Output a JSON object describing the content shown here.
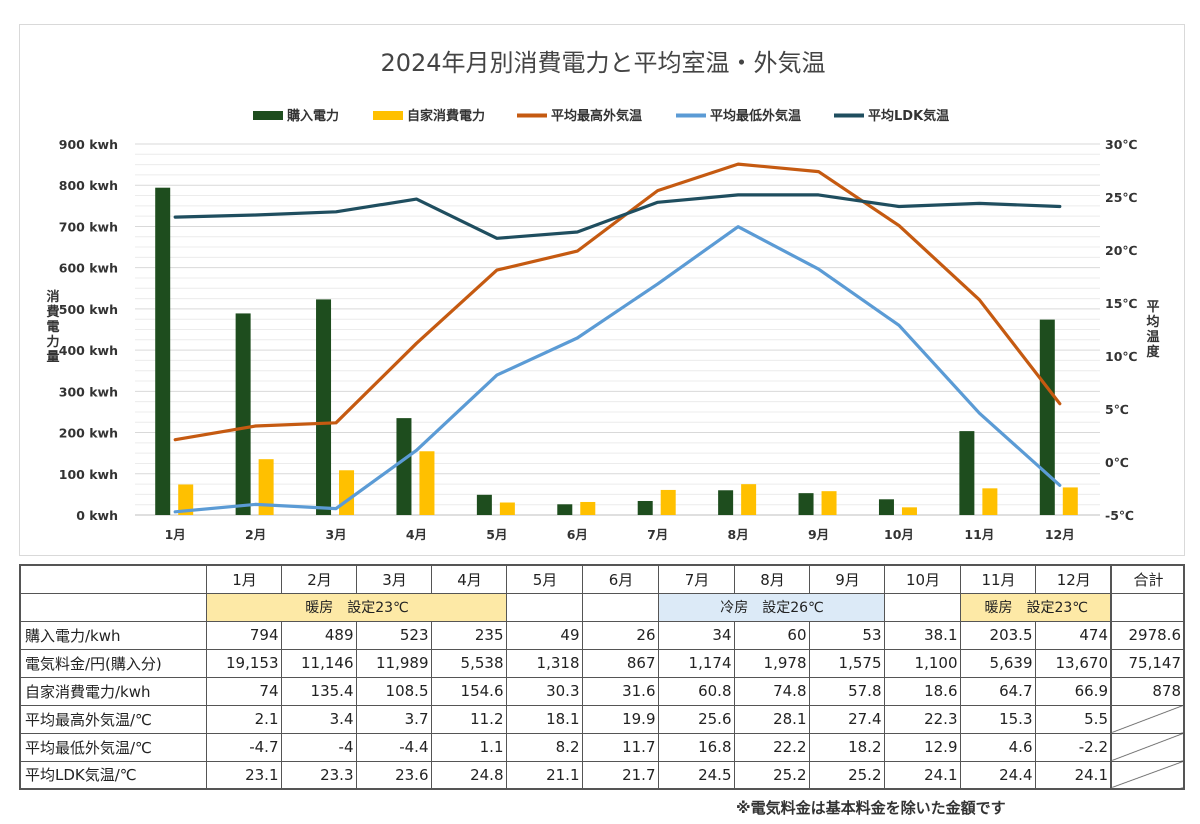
{
  "chart_data": {
    "type": "bar+line",
    "title": "2024年月別消費電力と平均室温・外気温",
    "categories": [
      "1月",
      "2月",
      "3月",
      "4月",
      "5月",
      "6月",
      "7月",
      "8月",
      "9月",
      "10月",
      "11月",
      "12月"
    ],
    "series": [
      {
        "name": "購入電力",
        "type": "bar",
        "axis": "left",
        "color": "#1e4d1e",
        "values": [
          794,
          489,
          523,
          235,
          49,
          26,
          34,
          60,
          53,
          38.1,
          203.5,
          474
        ]
      },
      {
        "name": "自家消費電力",
        "type": "bar",
        "axis": "left",
        "color": "#ffc000",
        "values": [
          74,
          135.4,
          108.5,
          154.6,
          30.3,
          31.6,
          60.8,
          74.8,
          57.8,
          18.6,
          64.7,
          66.9
        ]
      },
      {
        "name": "平均最高外気温",
        "type": "line",
        "axis": "right",
        "color": "#c55a11",
        "values": [
          2.1,
          3.4,
          3.7,
          11.2,
          18.1,
          19.9,
          25.6,
          28.1,
          27.4,
          22.3,
          15.3,
          5.5
        ]
      },
      {
        "name": "平均最低外気温",
        "type": "line",
        "axis": "right",
        "color": "#5b9bd5",
        "values": [
          -4.7,
          -4,
          -4.4,
          1.1,
          8.2,
          11.7,
          16.8,
          22.2,
          18.2,
          12.9,
          4.6,
          -2.2
        ]
      },
      {
        "name": "平均LDK気温",
        "type": "line",
        "axis": "right",
        "color": "#1f4e5f",
        "values": [
          23.1,
          23.3,
          23.6,
          24.8,
          21.1,
          21.7,
          24.5,
          25.2,
          25.2,
          24.1,
          24.4,
          24.1
        ]
      }
    ],
    "ylabel": "消費電力量",
    "y2label": "平均温度",
    "ylim": [
      0,
      900
    ],
    "y2lim": [
      -5,
      30
    ],
    "yticks": [
      "0 kwh",
      "100 kwh",
      "200 kwh",
      "300 kwh",
      "400 kwh",
      "500 kwh",
      "600 kwh",
      "700 kwh",
      "800 kwh",
      "900 kwh"
    ],
    "y2ticks": [
      "-5℃",
      "0℃",
      "5℃",
      "10℃",
      "15℃",
      "20℃",
      "25℃",
      "30℃"
    ],
    "legend": "top"
  },
  "table": {
    "corner": "",
    "months": [
      "1月",
      "2月",
      "3月",
      "4月",
      "5月",
      "6月",
      "7月",
      "8月",
      "9月",
      "10月",
      "11月",
      "12月"
    ],
    "total_header": "合計",
    "bands": {
      "heating1": "暖房　設定23℃",
      "cooling": "冷房　設定26℃",
      "heating2": "暖房　設定23℃"
    },
    "rows": [
      {
        "label": "購入電力/kwh",
        "values": [
          "794",
          "489",
          "523",
          "235",
          "49",
          "26",
          "34",
          "60",
          "53",
          "38.1",
          "203.5",
          "474"
        ],
        "total": "2978.6"
      },
      {
        "label": "電気料金/円(購入分)",
        "values": [
          "19,153",
          "11,146",
          "11,989",
          "5,538",
          "1,318",
          "867",
          "1,174",
          "1,978",
          "1,575",
          "1,100",
          "5,639",
          "13,670"
        ],
        "total": "75,147"
      },
      {
        "label": "自家消費電力/kwh",
        "values": [
          "74",
          "135.4",
          "108.5",
          "154.6",
          "30.3",
          "31.6",
          "60.8",
          "74.8",
          "57.8",
          "18.6",
          "64.7",
          "66.9"
        ],
        "total": "878"
      },
      {
        "label": "平均最高外気温/℃",
        "values": [
          "2.1",
          "3.4",
          "3.7",
          "11.2",
          "18.1",
          "19.9",
          "25.6",
          "28.1",
          "27.4",
          "22.3",
          "15.3",
          "5.5"
        ],
        "total": ""
      },
      {
        "label": "平均最低外気温/℃",
        "values": [
          "-4.7",
          "-4",
          "-4.4",
          "1.1",
          "8.2",
          "11.7",
          "16.8",
          "22.2",
          "18.2",
          "12.9",
          "4.6",
          "-2.2"
        ],
        "total": ""
      },
      {
        "label": "平均LDK気温/℃",
        "values": [
          "23.1",
          "23.3",
          "23.6",
          "24.8",
          "21.1",
          "21.7",
          "24.5",
          "25.2",
          "25.2",
          "24.1",
          "24.4",
          "24.1"
        ],
        "total": ""
      }
    ]
  },
  "footnote": "※電気料金は基本料金を除いた金額です"
}
